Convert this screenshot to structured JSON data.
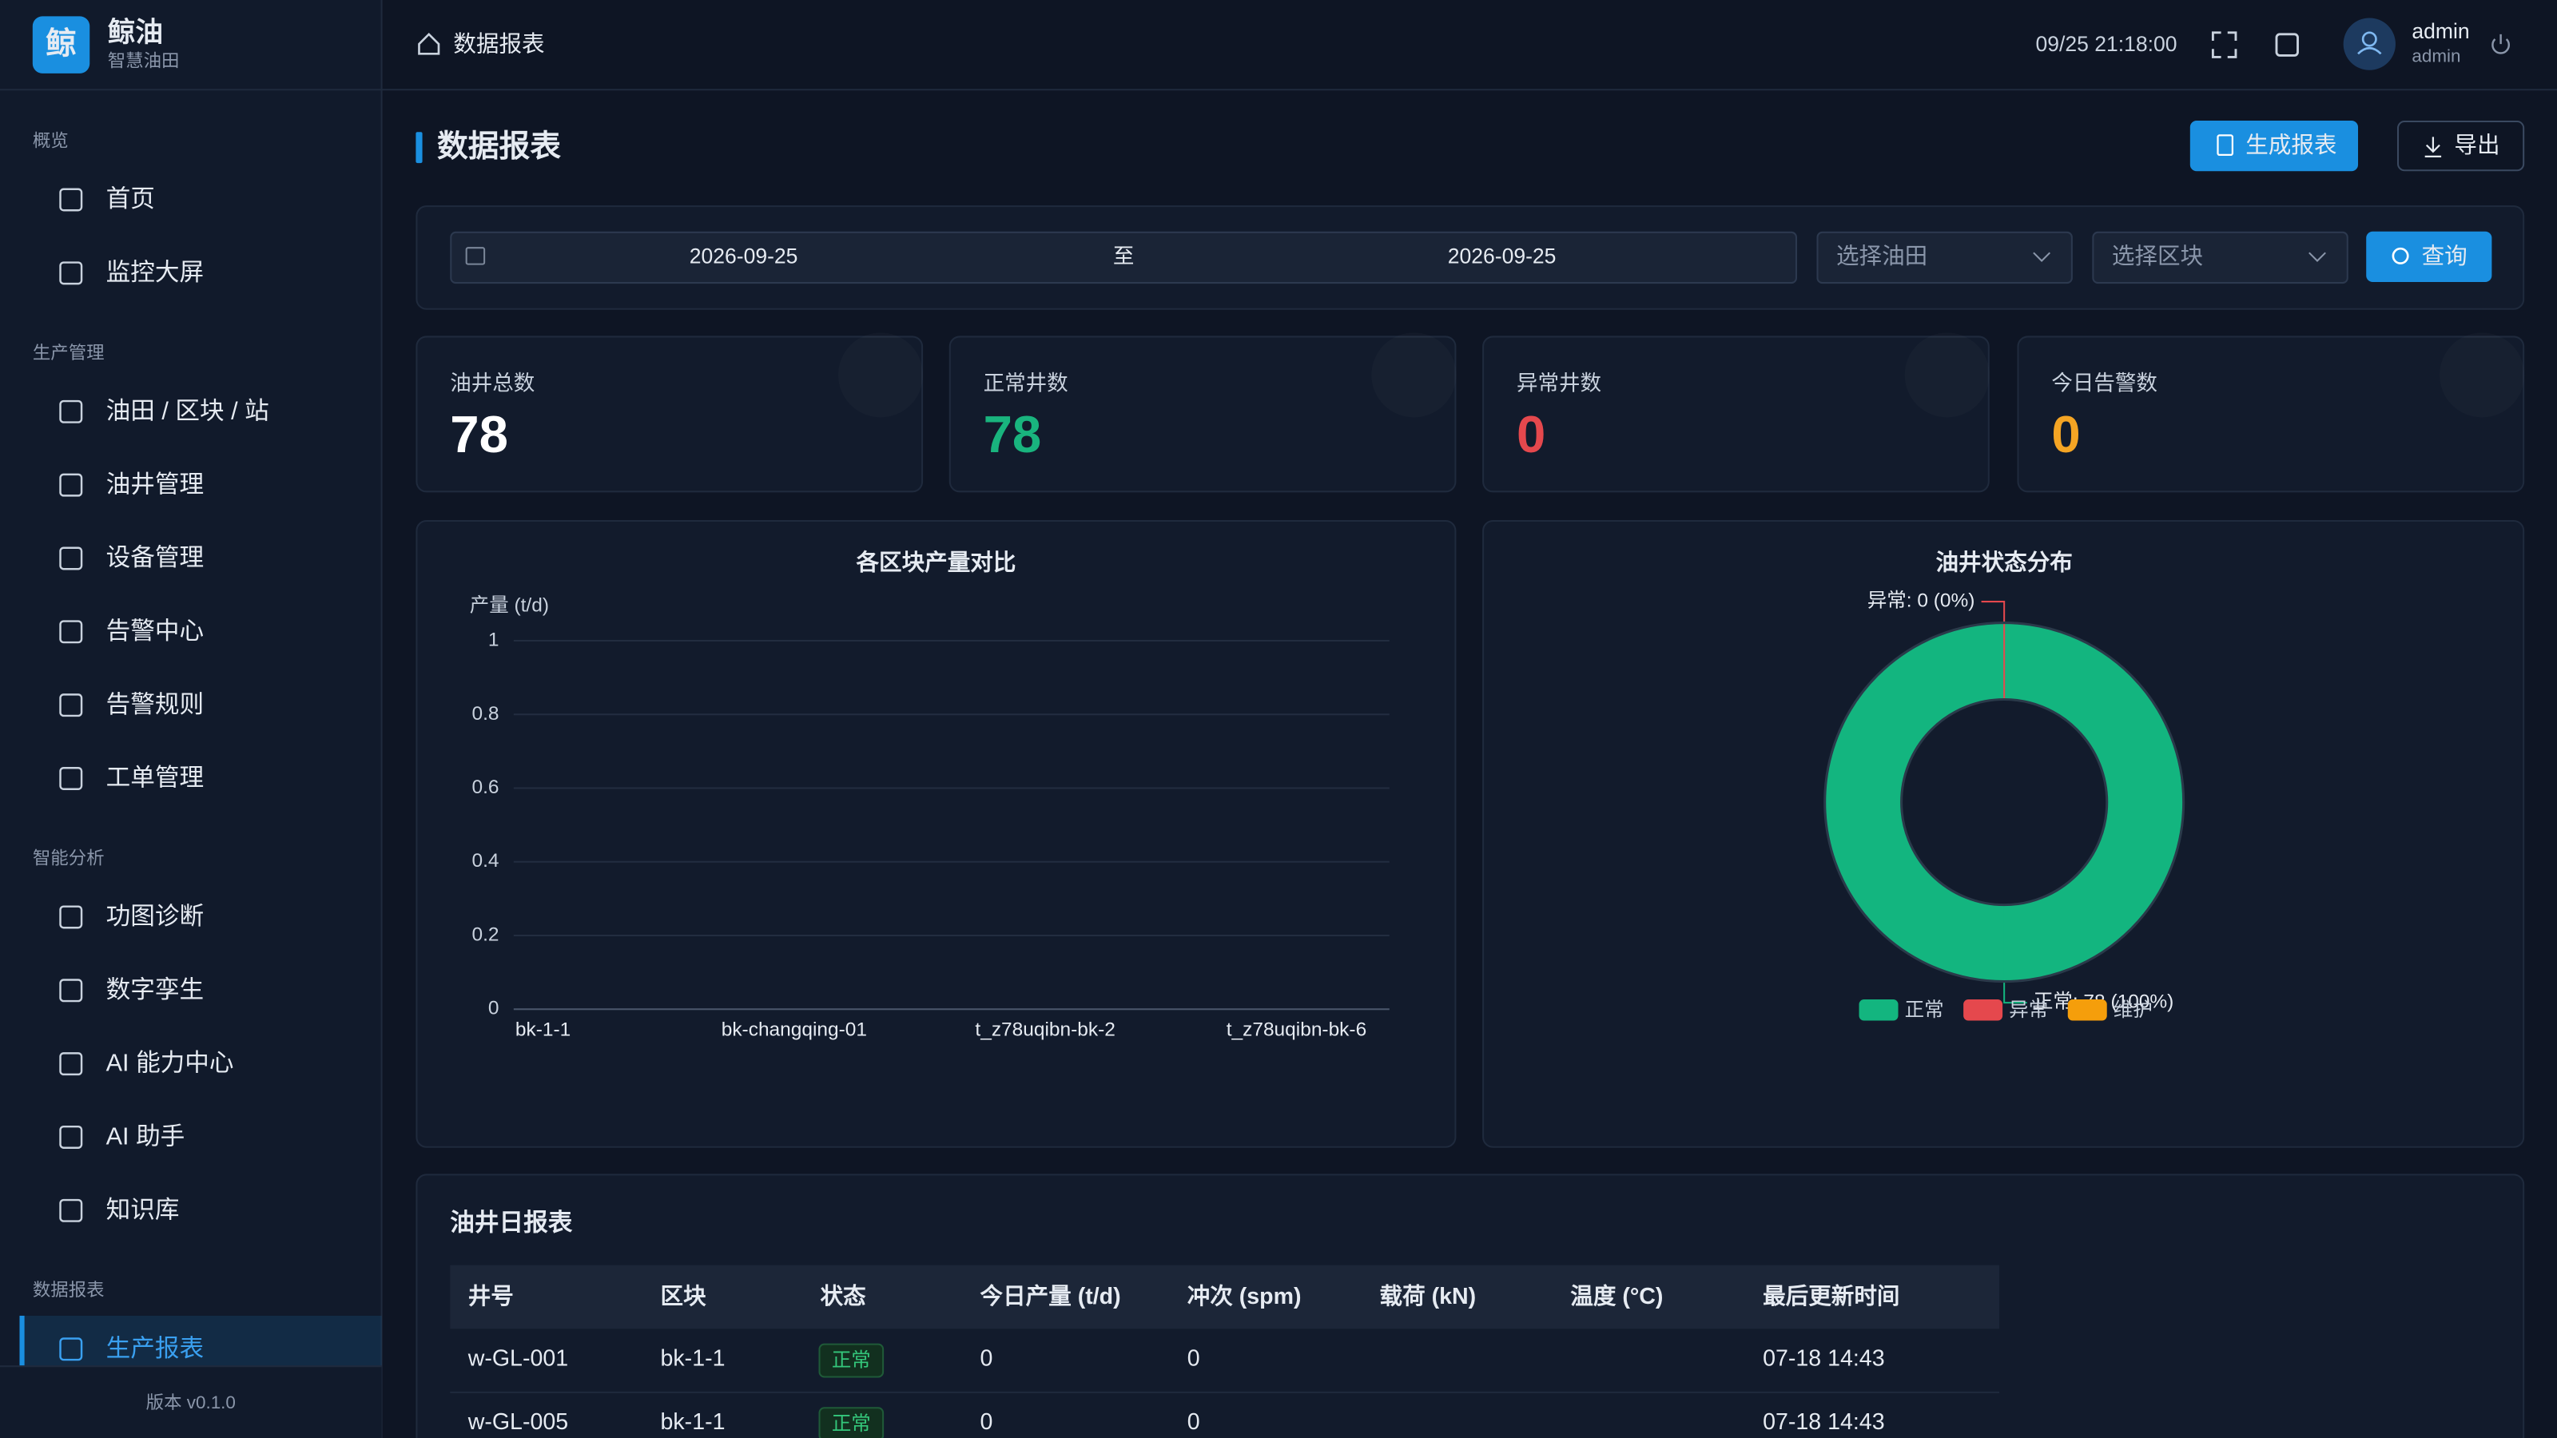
{
  "brand": {
    "logo": "鲸",
    "name": "鲸油",
    "subtitle": "智慧油田"
  },
  "nav": [
    {
      "group": "概览",
      "items": [
        "首页",
        "监控大屏"
      ]
    },
    {
      "group": "生产管理",
      "items": [
        "油田 / 区块 / 站",
        "油井管理",
        "设备管理",
        "告警中心",
        "告警规则",
        "工单管理"
      ]
    },
    {
      "group": "智能分析",
      "items": [
        "功图诊断",
        "数字孪生",
        "AI 能力中心",
        "AI 助手",
        "知识库"
      ]
    },
    {
      "group": "数据报表",
      "items": [
        "生产报表"
      ]
    }
  ],
  "active_nav": [
    3,
    0
  ],
  "version": "版本 v0.1.0",
  "topbar": {
    "breadcrumb": "数据报表",
    "datetime": "09/25 21:18:00",
    "user": "admin",
    "role": "admin"
  },
  "page": {
    "title": "数据报表",
    "generate": "生成报表",
    "export": "导出"
  },
  "filters": {
    "start": "2026-09-25",
    "separator": "至",
    "end": "2026-09-25",
    "field": "选择油田",
    "block": "选择区块",
    "query": "查询"
  },
  "stats": [
    {
      "label": "油井总数",
      "value": 78,
      "color": "#ffffff"
    },
    {
      "label": "正常井数",
      "value": 78,
      "color": "#19b47e"
    },
    {
      "label": "异常井数",
      "value": 0,
      "color": "#e5484d"
    },
    {
      "label": "今日告警数",
      "value": 0,
      "color": "#f5a524"
    }
  ],
  "chart_data": [
    {
      "type": "bar",
      "title": "各区块产量对比",
      "y_label": "产量 (t/d)",
      "categories": [
        "bk-1-1",
        "bk-changqing-01",
        "t_z78uqibn-bk-2",
        "t_z78uqibn-bk-6"
      ],
      "values": [
        0,
        0,
        0,
        0
      ],
      "color": "#1a8fe0",
      "ylim": [
        0,
        1
      ],
      "yticks": [
        0,
        0.2,
        0.4,
        0.6,
        0.8,
        1
      ],
      "grid": true
    },
    {
      "type": "pie",
      "title": "油井状态分布",
      "categories": [
        "正常",
        "异常",
        "维护"
      ],
      "values": [
        78,
        0,
        0
      ],
      "value_labels": [
        "正常: 78 (100%)",
        "异常: 0 (0%)",
        null
      ],
      "colors": [
        "#13b57f",
        "#e5484d",
        "#f59e0b"
      ],
      "donut": true,
      "legend": "bottom"
    }
  ],
  "table": {
    "title": "油井日报表",
    "columns": [
      "井号",
      "区块",
      "状态",
      "今日产量 (t/d)",
      "冲次 (spm)",
      "载荷 (kN)",
      "温度 (°C)",
      "最后更新时间"
    ],
    "rows": [
      [
        "w-GL-001",
        "bk-1-1",
        "正常",
        0,
        0,
        null,
        null,
        "07-18 14:43"
      ],
      [
        "w-GL-005",
        "bk-1-1",
        "正常",
        0,
        0,
        null,
        null,
        "07-18 14:43"
      ]
    ]
  }
}
